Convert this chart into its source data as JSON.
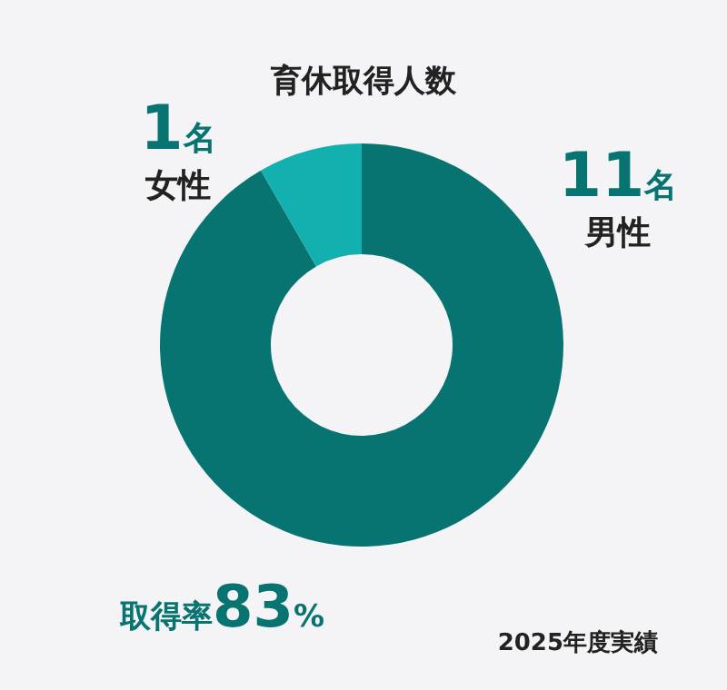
{
  "chart_data": {
    "type": "donut",
    "title": "育休取得人数",
    "categories": [
      "男性",
      "女性"
    ],
    "values": [
      11,
      1
    ],
    "value_labels": [
      "11名",
      "1名"
    ],
    "colors": [
      "#077471",
      "#12b0ae"
    ],
    "annotations": [
      "取得率83%",
      "2025年度実績"
    ]
  }
}
